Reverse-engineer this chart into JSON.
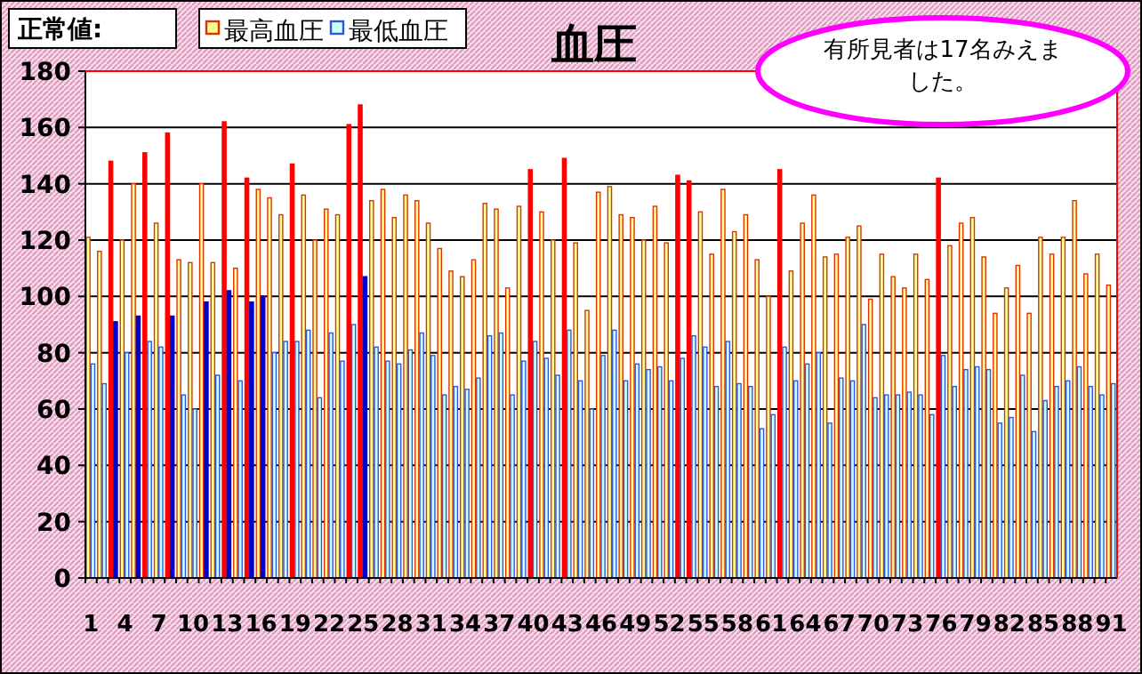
{
  "chart_data": {
    "type": "bar",
    "title": "血圧",
    "annotations": [
      "正常値:",
      "有所見者は17名みえました。"
    ],
    "categories": [
      "1",
      null,
      null,
      "4",
      null,
      null,
      "7",
      null,
      null,
      "10",
      null,
      null,
      "13",
      null,
      null,
      "16",
      null,
      null,
      "19",
      null,
      null,
      "22",
      null,
      null,
      "25",
      null,
      null,
      "28",
      null,
      null,
      "31",
      null,
      null,
      "34",
      null,
      null,
      "37",
      null,
      null,
      "40",
      null,
      null,
      "43",
      null,
      null,
      "46",
      null,
      null,
      "49",
      null,
      null,
      "52",
      null,
      null,
      "55",
      null,
      null,
      "58",
      null,
      null,
      "61",
      null,
      null,
      "64",
      null,
      null,
      "67",
      null,
      null,
      "70",
      null,
      null,
      "73",
      null,
      null,
      "76",
      null,
      null,
      "79",
      null,
      null,
      "82",
      null,
      null,
      "85",
      null,
      null,
      "88",
      null,
      null,
      "91"
    ],
    "series": [
      {
        "name": "最高血圧",
        "color": "#ffff99",
        "values": [
          121,
          116,
          148,
          120,
          140,
          151,
          126,
          158,
          113,
          112,
          140,
          112,
          162,
          110,
          142,
          138,
          135,
          129,
          147,
          136,
          120,
          131,
          129,
          161,
          168,
          134,
          138,
          128,
          136,
          134,
          126,
          117,
          109,
          107,
          113,
          133,
          131,
          103,
          132,
          145,
          130,
          120,
          149,
          119,
          95,
          137,
          139,
          129,
          128,
          120,
          132,
          119,
          143,
          141,
          130,
          115,
          138,
          123,
          129,
          113,
          100,
          145,
          109,
          126,
          136,
          114,
          115,
          121,
          125,
          99,
          115,
          107,
          103,
          115,
          106,
          142,
          118,
          126,
          128,
          114,
          94,
          103,
          111,
          94,
          121,
          115,
          121,
          134,
          108,
          115,
          104
        ],
        "colors": [
          "#ffff99",
          "#ffff99",
          "#ff0000",
          "#ffff99",
          "#ffff99",
          "#ff0000",
          "#ffff99",
          "#ff0000",
          "#ffff99",
          "#ffff99",
          "#ffff99",
          "#ffff99",
          "#ff0000",
          "#ffff99",
          "#ff0000",
          "#ffff99",
          "#ffff99",
          "#ffff99",
          "#ff0000",
          "#ffff99",
          "#ffff99",
          "#ffff99",
          "#ffff99",
          "#ff0000",
          "#ff0000",
          "#ffff99",
          "#ffff99",
          "#ffff99",
          "#ffff99",
          "#ffff99",
          "#ffff99",
          "#ffff99",
          "#ffff99",
          "#ffff99",
          "#ffff99",
          "#ffff99",
          "#ffff99",
          "#ffff99",
          "#ffff99",
          "#ff0000",
          "#ffff99",
          "#ffff99",
          "#ff0000",
          "#ffff99",
          "#ffff99",
          "#ffff99",
          "#ffff99",
          "#ffff99",
          "#ffff99",
          "#ffff99",
          "#ffff99",
          "#ffff99",
          "#ff0000",
          "#ff0000",
          "#ffff99",
          "#ffff99",
          "#ffff99",
          "#ffff99",
          "#ffff99",
          "#ffff99",
          "#ffff99",
          "#ff0000",
          "#ffff99",
          "#ffff99",
          "#ffff99",
          "#ffff99",
          "#ffff99",
          "#ffff99",
          "#ffff99",
          "#ffff99",
          "#ffff99",
          "#ffff99",
          "#ffff99",
          "#ffff99",
          "#ffff99",
          "#ff0000",
          "#ffff99",
          "#ffff99",
          "#ffff99",
          "#ffff99",
          "#ffff99",
          "#ffff99",
          "#ffff99",
          "#ffff99",
          "#ffff99",
          "#ffff99",
          "#ffff99",
          "#ffff99",
          "#ffff99",
          "#ffff99",
          "#ffff99"
        ]
      },
      {
        "name": "最低血圧",
        "color": "#ccffff",
        "values": [
          76,
          69,
          91,
          80,
          93,
          84,
          82,
          93,
          65,
          60,
          98,
          72,
          102,
          70,
          98,
          100,
          80,
          84,
          84,
          88,
          64,
          87,
          77,
          90,
          107,
          82,
          77,
          76,
          81,
          87,
          79,
          65,
          68,
          67,
          71,
          86,
          87,
          65,
          77,
          84,
          78,
          72,
          88,
          70,
          60,
          79,
          88,
          70,
          76,
          74,
          75,
          70,
          78,
          86,
          82,
          68,
          84,
          69,
          68,
          53,
          58,
          82,
          70,
          76,
          80,
          55,
          71,
          70,
          90,
          64,
          65,
          65,
          66,
          65,
          58,
          79,
          68,
          74,
          75,
          74,
          55,
          57,
          72,
          52,
          63,
          68,
          70,
          75,
          68,
          65,
          69
        ],
        "colors": [
          "#ccffff",
          "#ccffff",
          "#0000cc",
          "#ccffff",
          "#0000cc",
          "#ccffff",
          "#ccffff",
          "#0000cc",
          "#ccffff",
          "#ccffff",
          "#0000cc",
          "#ccffff",
          "#0000cc",
          "#ccffff",
          "#0000cc",
          "#0000cc",
          "#ccffff",
          "#ccffff",
          "#ccffff",
          "#ccffff",
          "#ccffff",
          "#ccffff",
          "#ccffff",
          "#ccffff",
          "#0000cc",
          "#ccffff",
          "#ccffff",
          "#ccffff",
          "#ccffff",
          "#ccffff",
          "#ccffff",
          "#ccffff",
          "#ccffff",
          "#ccffff",
          "#ccffff",
          "#ccffff",
          "#ccffff",
          "#ccffff",
          "#ccffff",
          "#ccffff",
          "#ccffff",
          "#ccffff",
          "#ccffff",
          "#ccffff",
          "#ccffff",
          "#ccffff",
          "#ccffff",
          "#ccffff",
          "#ccffff",
          "#ccffff",
          "#ccffff",
          "#ccffff",
          "#ccffff",
          "#ccffff",
          "#ccffff",
          "#ccffff",
          "#ccffff",
          "#ccffff",
          "#ccffff",
          "#ccffff",
          "#ccffff",
          "#ccffff",
          "#ccffff",
          "#ccffff",
          "#ccffff",
          "#ccffff",
          "#ccffff",
          "#ccffff",
          "#ccffff",
          "#ccffff",
          "#ccffff",
          "#ccffff",
          "#ccffff",
          "#ccffff",
          "#ccffff",
          "#ccffff",
          "#ccffff",
          "#ccffff",
          "#ccffff",
          "#ccffff",
          "#ccffff",
          "#ccffff",
          "#ccffff",
          "#ccffff",
          "#ccffff",
          "#ccffff",
          "#ccffff",
          "#ccffff",
          "#ccffff",
          "#ccffff",
          "#ccffff"
        ]
      }
    ],
    "ylim": [
      0,
      180
    ],
    "yticks": [
      0,
      20,
      40,
      60,
      80,
      100,
      120,
      140,
      160,
      180
    ],
    "grid": "y",
    "legend": "top left"
  }
}
